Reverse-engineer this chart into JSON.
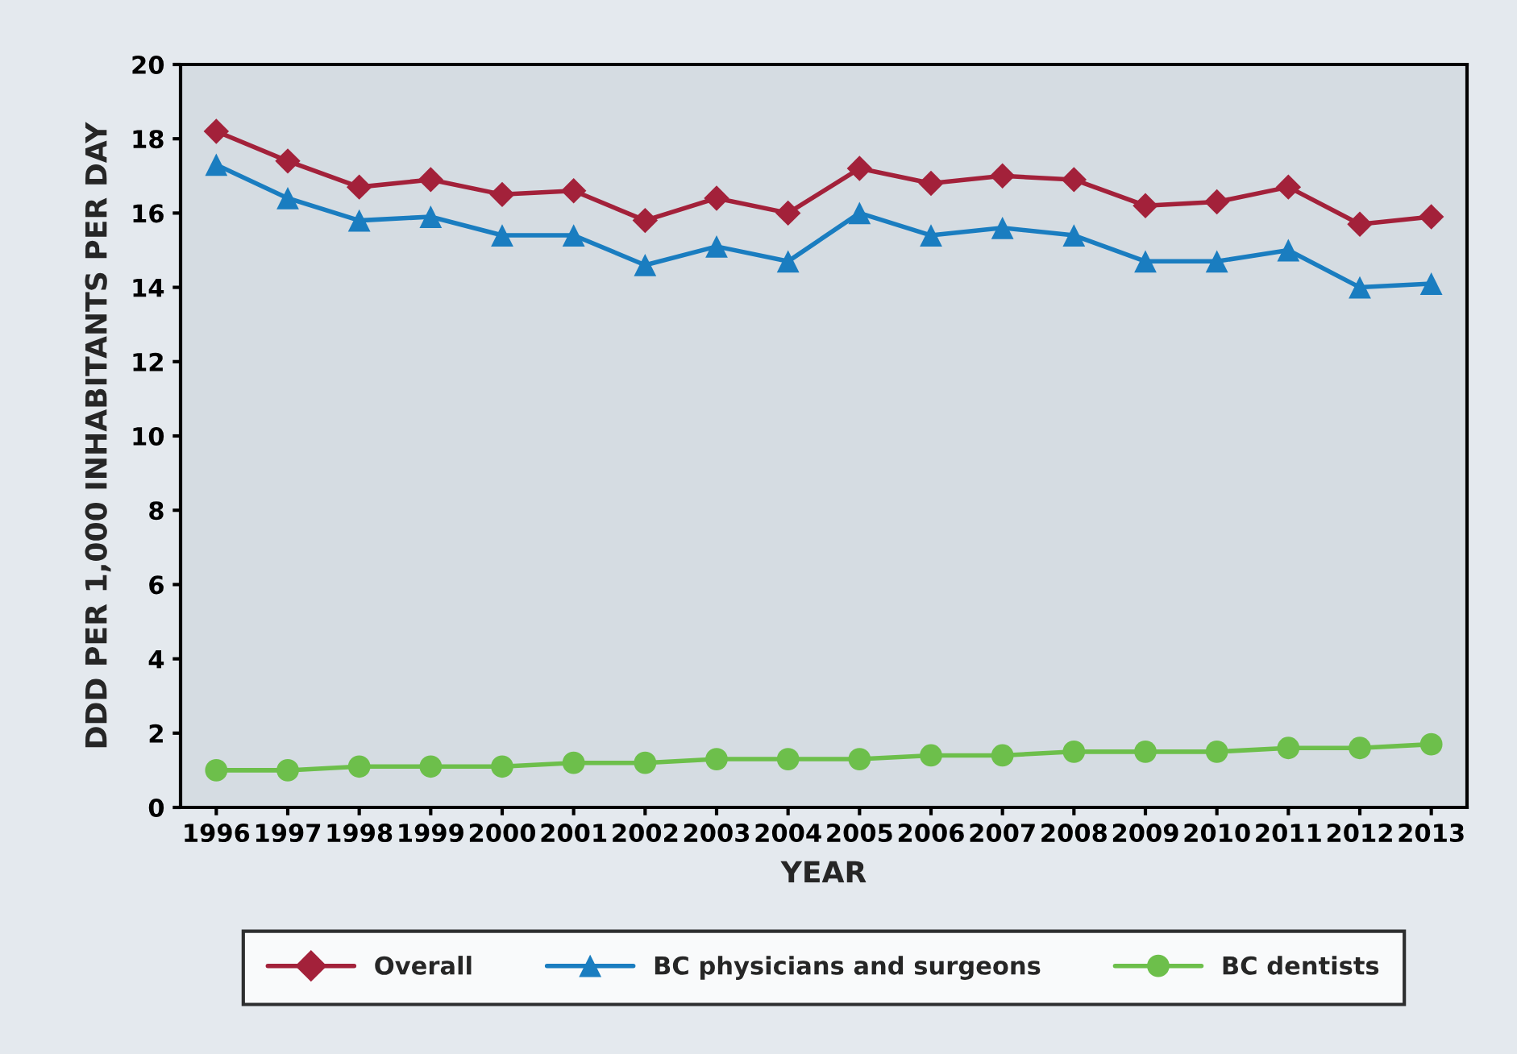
{
  "chart_data": {
    "type": "line",
    "xlabel": "YEAR",
    "ylabel": "DDD PER 1,000 INHABITANTS PER DAY",
    "categories": [
      "1996",
      "1997",
      "1998",
      "1999",
      "2000",
      "2001",
      "2002",
      "2003",
      "2004",
      "2005",
      "2006",
      "2007",
      "2008",
      "2009",
      "2010",
      "2011",
      "2012",
      "2013"
    ],
    "series": [
      {
        "name": "Overall",
        "color": "#a3213a",
        "marker": "diamond",
        "values": [
          18.2,
          17.4,
          16.7,
          16.9,
          16.5,
          16.6,
          15.8,
          16.4,
          16.0,
          17.2,
          16.8,
          17.0,
          16.9,
          16.2,
          16.3,
          16.7,
          15.7,
          15.9
        ]
      },
      {
        "name": "BC physicians and surgeons",
        "color": "#1a7dc0",
        "marker": "triangle",
        "values": [
          17.3,
          16.4,
          15.8,
          15.9,
          15.4,
          15.4,
          14.6,
          15.1,
          14.7,
          16.0,
          15.4,
          15.6,
          15.4,
          14.7,
          14.7,
          15.0,
          14.0,
          14.1
        ]
      },
      {
        "name": "BC dentists",
        "color": "#6dbf4b",
        "marker": "circle",
        "values": [
          1.0,
          1.0,
          1.1,
          1.1,
          1.1,
          1.2,
          1.2,
          1.3,
          1.3,
          1.3,
          1.4,
          1.4,
          1.5,
          1.5,
          1.5,
          1.6,
          1.6,
          1.7
        ]
      }
    ],
    "ylim": [
      0,
      20
    ],
    "yticks": [
      0,
      2,
      4,
      6,
      8,
      10,
      12,
      14,
      16,
      18,
      20
    ],
    "grid": false,
    "legend": "bottom",
    "line_style": "solid"
  }
}
